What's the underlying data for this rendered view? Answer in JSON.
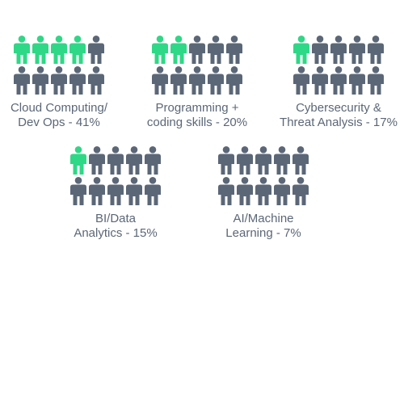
{
  "colors": {
    "highlight": "#2ed886",
    "base": "#5b6777",
    "text": "#5b6777"
  },
  "icon": "person-icon",
  "grid": {
    "rows": 2,
    "cols": 5
  },
  "chart_data": {
    "type": "pictograph",
    "units_per_chart": 10,
    "items": [
      {
        "label_lines": [
          "Cloud Computing/",
          "Dev Ops - 41%"
        ],
        "value": 41
      },
      {
        "label_lines": [
          "Programming +",
          "coding skills - 20%"
        ],
        "value": 20
      },
      {
        "label_lines": [
          "Cybersecurity &",
          "Threat Analysis - 17%"
        ],
        "value": 17
      },
      {
        "label_lines": [
          "BI/Data",
          "Analytics - 15%"
        ],
        "value": 15
      },
      {
        "label_lines": [
          "AI/Machine",
          "Learning - 7%"
        ],
        "value": 7
      }
    ]
  }
}
